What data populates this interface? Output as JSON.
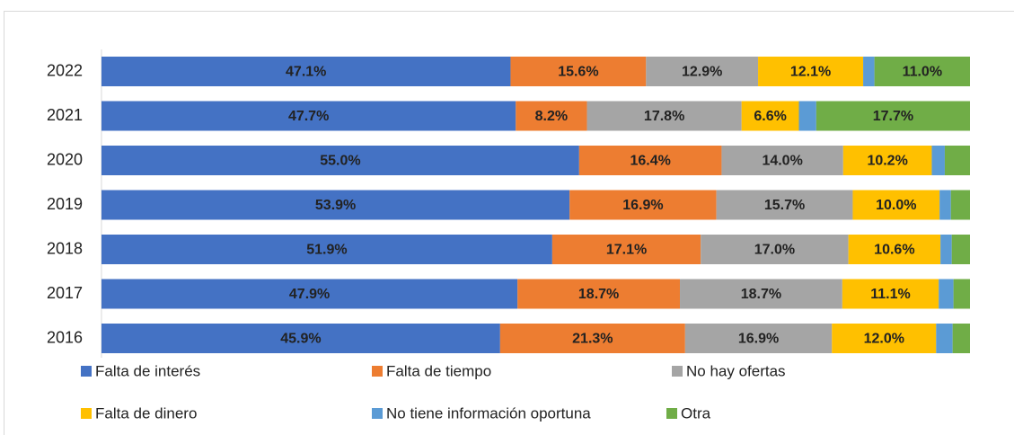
{
  "chart_data": {
    "type": "stacked_bar_horizontal",
    "categories": [
      "2022",
      "2021",
      "2020",
      "2019",
      "2018",
      "2017",
      "2016"
    ],
    "xlim": [
      0,
      100
    ],
    "series": [
      {
        "name": "Falta de interés",
        "color": "#4472c4",
        "values": [
          47.1,
          47.7,
          55.0,
          53.9,
          51.9,
          47.9,
          45.9
        ],
        "value_labels": [
          "47.1%",
          "47.7%",
          "55.0%",
          "53.9%",
          "51.9%",
          "47.9%",
          "45.9%"
        ]
      },
      {
        "name": "Falta de tiempo",
        "color": "#ed7d31",
        "values": [
          15.6,
          8.2,
          16.4,
          16.9,
          17.1,
          18.7,
          21.3
        ],
        "value_labels": [
          "15.6%",
          "8.2%",
          "16.4%",
          "16.9%",
          "17.1%",
          "18.7%",
          "21.3%"
        ]
      },
      {
        "name": "No hay ofertas",
        "color": "#a5a5a5",
        "values": [
          12.9,
          17.8,
          14.0,
          15.7,
          17.0,
          18.7,
          16.9
        ],
        "value_labels": [
          "12.9%",
          "17.8%",
          "14.0%",
          "15.7%",
          "17.0%",
          "18.7%",
          "16.9%"
        ]
      },
      {
        "name": "Falta de dinero",
        "color": "#ffc000",
        "values": [
          12.1,
          6.6,
          10.2,
          10.0,
          10.6,
          11.1,
          12.0
        ],
        "value_labels": [
          "12.1%",
          "6.6%",
          "10.2%",
          "10.0%",
          "10.6%",
          "11.1%",
          "12.0%"
        ]
      },
      {
        "name": "No tiene información oportuna",
        "color": "#5b9bd5",
        "values": [
          1.3,
          2.0,
          1.5,
          1.3,
          1.3,
          1.7,
          1.9
        ]
      },
      {
        "name": "Otra",
        "color": "#70ad47",
        "values": [
          11.0,
          17.7,
          2.9,
          2.2,
          2.1,
          1.9,
          2.0
        ],
        "value_labels": [
          "11.0%",
          "17.7%",
          null,
          null,
          null,
          null,
          null
        ]
      }
    ]
  }
}
